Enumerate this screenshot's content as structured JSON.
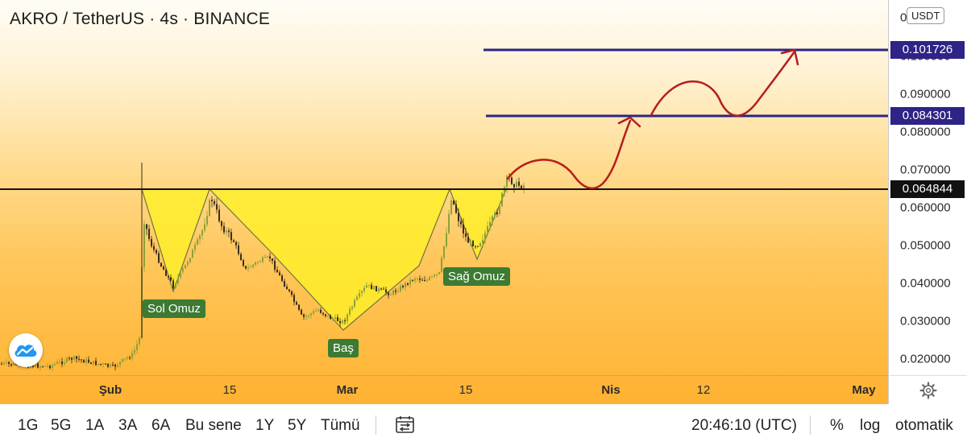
{
  "title": "AKRO / TetherUS · 4s · BINANCE",
  "currency": "USDT",
  "price_ticks": [
    "0.100000",
    "0.090000",
    "0.080000",
    "0.070000",
    "0.060000",
    "0.050000",
    "0.040000",
    "0.030000",
    "0.020000"
  ],
  "price_top_partial": "0.1",
  "levels": {
    "upper_target": "0.101726",
    "lower_target": "0.084301",
    "neckline": "0.064844"
  },
  "patterns": {
    "left_shoulder": "Sol Omuz",
    "head": "Baş",
    "right_shoulder": "Sağ Omuz"
  },
  "time_labels": [
    "Şub",
    "15",
    "Mar",
    "15",
    "Nis",
    "12",
    "May"
  ],
  "toolbar": {
    "ranges": [
      "1G",
      "5G",
      "1A",
      "3A",
      "6A",
      "Bu sene",
      "1Y",
      "5Y",
      "Tümü"
    ],
    "clock": "20:46:10 (UTC)",
    "percent": "%",
    "log": "log",
    "auto": "otomatik"
  },
  "icons": {
    "compare": "compare-range-icon",
    "settings": "gear-icon",
    "logo": "tradingview-cloud-icon"
  },
  "colors": {
    "target_line": "#2e2386",
    "projection": "#b41e1e",
    "pattern_fill": "#ffef2a",
    "label_bg": "#3d7a33"
  },
  "chart_data": {
    "type": "candlestick",
    "symbol": "AKRO / TetherUS",
    "interval": "4s",
    "exchange": "BINANCE",
    "ylim": [
      0.015,
      0.103
    ],
    "x_ticks": [
      "Şub",
      "15",
      "Mar",
      "15",
      "Nis",
      "12",
      "May"
    ],
    "approx_close_path": [
      [
        "late Jan",
        0.018
      ],
      [
        "Şub",
        0.02
      ],
      [
        "early Feb spike",
        0.065
      ],
      [
        "Sol Omuz",
        0.038
      ],
      [
        "mid Feb",
        0.064
      ],
      [
        "Baş",
        0.028
      ],
      [
        "early Mar",
        0.04
      ],
      [
        "mid Mar",
        0.064
      ],
      [
        "Sağ Omuz",
        0.046
      ],
      [
        "last",
        0.0648
      ]
    ],
    "horizontal_levels": [
      0.101726,
      0.084301,
      0.064844
    ],
    "pattern": "inverse head and shoulders"
  }
}
